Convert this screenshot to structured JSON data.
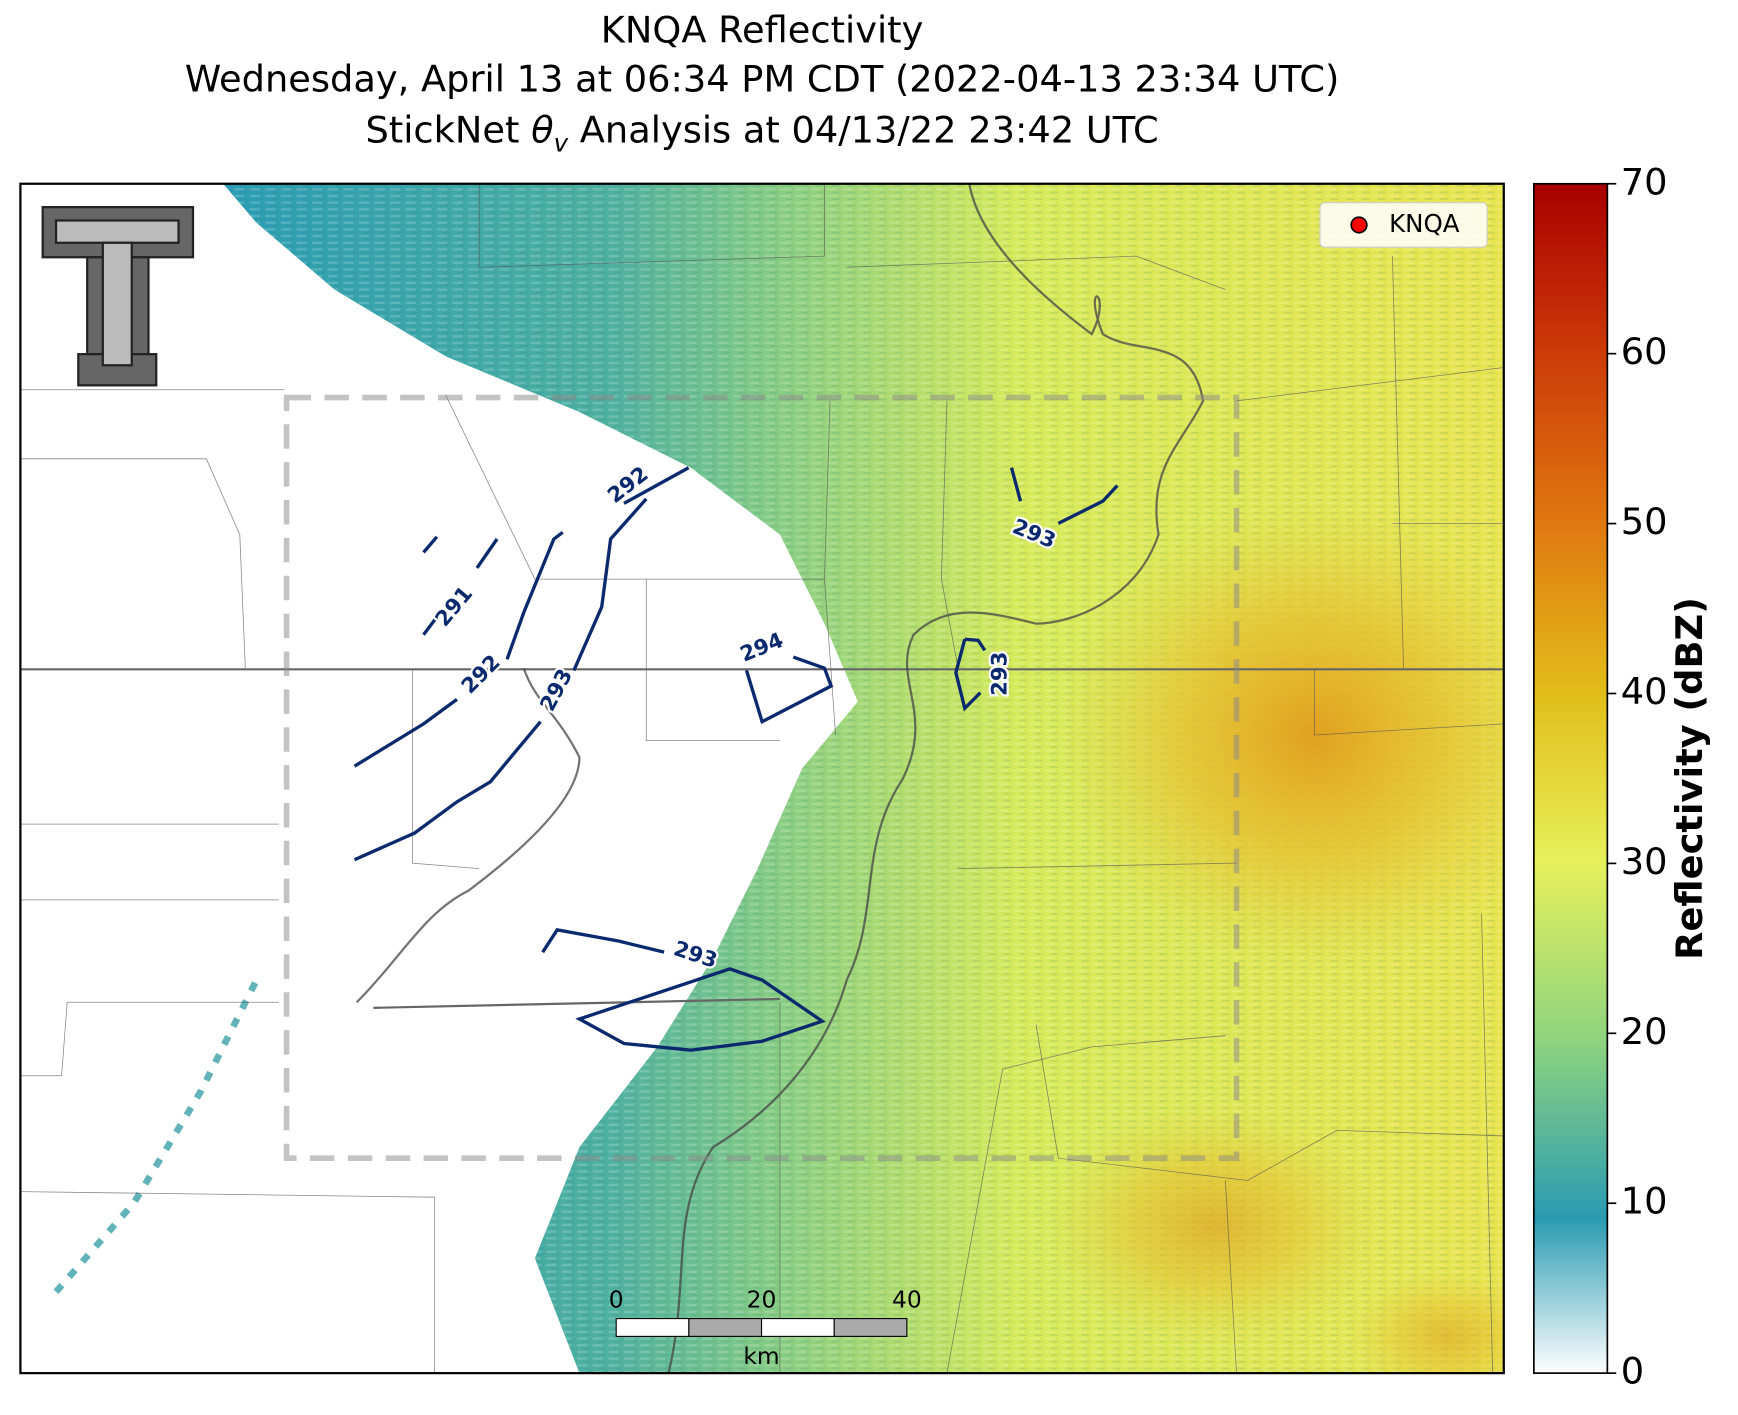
{
  "header": {
    "title": "KNQA Reflectivity",
    "subtitle": "Wednesday, April 13 at 06:34 PM CDT (2022-04-13 23:34 UTC)",
    "analysis": {
      "prefix": "StickNet ",
      "symbol": "θ",
      "subscript": "v",
      "suffix": " Analysis at 04/13/22 23:42 UTC"
    }
  },
  "legend": {
    "label": "KNQA",
    "color": "#ff0000"
  },
  "contour_labels": [
    292,
    291,
    292,
    293,
    294,
    293,
    293,
    293
  ],
  "colorbar": {
    "label": "Reflectivity (dBZ)",
    "lim": [
      0,
      70
    ],
    "ticks": [
      0,
      10,
      20,
      30,
      40,
      50,
      60,
      70
    ]
  },
  "scale_bar": {
    "lim": [
      0,
      40
    ],
    "ticks": [
      0,
      20,
      40
    ],
    "unit": "km"
  }
}
